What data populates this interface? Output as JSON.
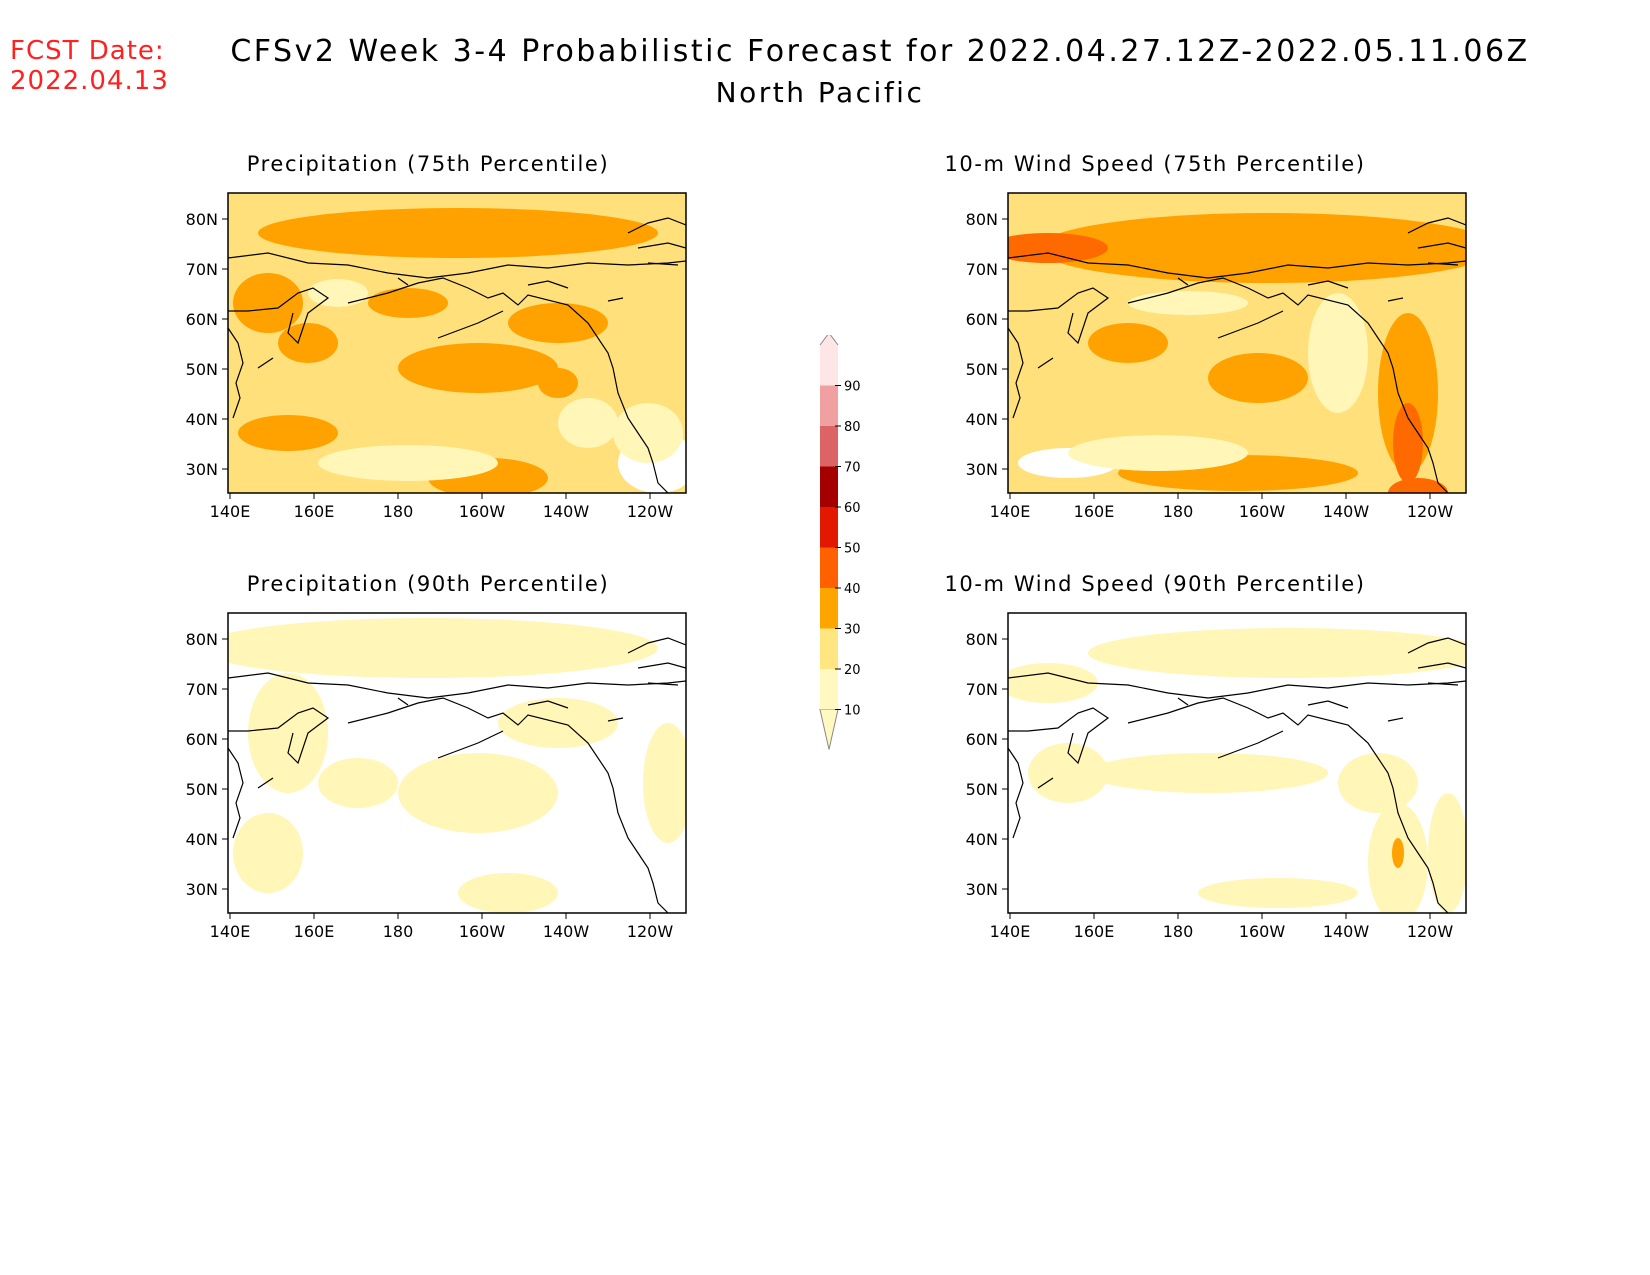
{
  "header": {
    "fcst_label": "FCST Date:",
    "fcst_date": "2022.04.13",
    "title": "CFSv2 Week 3-4 Probabilistic Forecast for 2022.04.27.12Z-2022.05.11.06Z",
    "region": "North Pacific"
  },
  "panels": [
    {
      "id": "p75",
      "title": "Precipitation (75th Percentile)"
    },
    {
      "id": "w75",
      "title": "10-m Wind Speed (75th Percentile)"
    },
    {
      "id": "p90",
      "title": "Precipitation (90th Percentile)"
    },
    {
      "id": "w90",
      "title": "10-m Wind Speed (90th Percentile)"
    }
  ],
  "axes": {
    "lat_labels": [
      "80N",
      "70N",
      "60N",
      "50N",
      "40N",
      "30N"
    ],
    "lon_labels": [
      "140E",
      "160E",
      "180",
      "160W",
      "140W",
      "120W"
    ]
  },
  "colorbar": {
    "levels": [
      "10",
      "20",
      "30",
      "40",
      "50",
      "60",
      "70",
      "80",
      "90"
    ],
    "colors": [
      "#fff8c0",
      "#ffe680",
      "#ffa500",
      "#ff6000",
      "#e21800",
      "#a50000",
      "#dc6464",
      "#f0a0a0",
      "#ffe6e6"
    ]
  }
}
